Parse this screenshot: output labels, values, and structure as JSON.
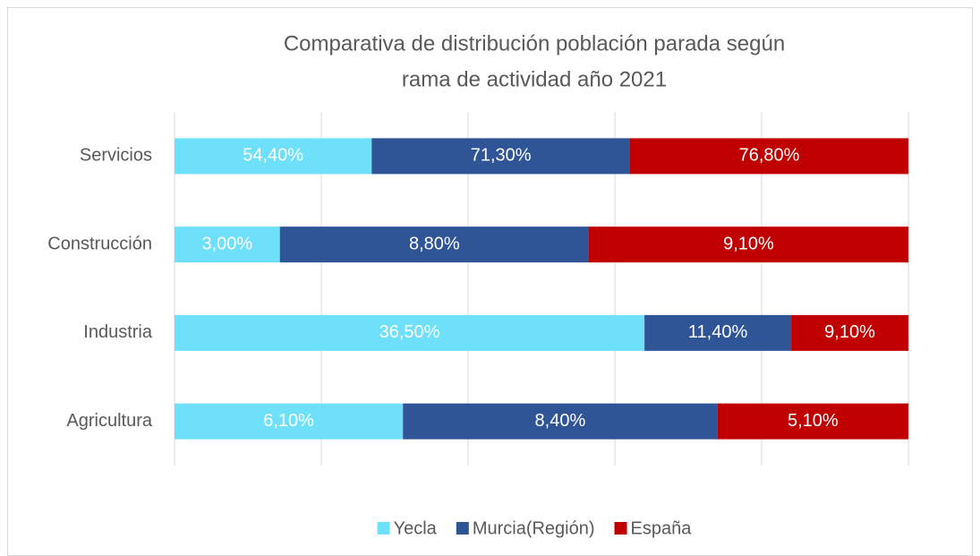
{
  "chart_data": {
    "type": "bar",
    "orientation": "horizontal",
    "stacking": "percent",
    "title": [
      "Comparativa de distribución población parada según",
      "rama de actividad año 2021"
    ],
    "categories": [
      "Servicios",
      "Construcción",
      "Industria",
      "Agricultura"
    ],
    "series": [
      {
        "name": "Yecla",
        "color": "#6fe0fa",
        "label_color": "#ffffff",
        "values": [
          54.4,
          3.0,
          36.5,
          6.1
        ],
        "value_labels": [
          "54,40%",
          "3,00%",
          "36,50%",
          "6,10%"
        ]
      },
      {
        "name": "Murcia(Región)",
        "color": "#2f5597",
        "label_color": "#ffffff",
        "values": [
          71.3,
          8.8,
          11.4,
          8.4
        ],
        "value_labels": [
          "71,30%",
          "8,80%",
          "11,40%",
          "8,40%"
        ]
      },
      {
        "name": "España",
        "color": "#c00000",
        "label_color": "#ffffff",
        "values": [
          76.8,
          9.1,
          9.1,
          5.1
        ],
        "value_labels": [
          "76,80%",
          "9,10%",
          "9,10%",
          "5,10%"
        ]
      }
    ],
    "xlim": [
      0,
      100
    ],
    "xticks": [
      0,
      20,
      40,
      60,
      80,
      100
    ],
    "tick_labels": false,
    "grid": true,
    "legend": "bottom"
  }
}
